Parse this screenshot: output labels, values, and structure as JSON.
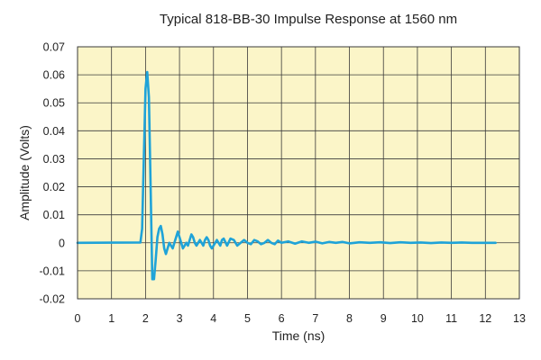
{
  "chart_data": {
    "type": "line",
    "title": "Typical 818-BB-30 Impulse Response at 1560 nm",
    "xlabel": "Time (ns)",
    "ylabel": "Amplitude (Volts)",
    "xlim": [
      0,
      13
    ],
    "ylim": [
      -0.02,
      0.07
    ],
    "x_ticks": [
      "0",
      "1",
      "2",
      "3",
      "4",
      "5",
      "6",
      "7",
      "8",
      "9",
      "10",
      "11",
      "12",
      "13"
    ],
    "y_ticks": [
      "-0.02",
      "-0.01",
      "0",
      "0.01",
      "0.02",
      "0.03",
      "0.04",
      "0.05",
      "0.06",
      "0.07"
    ],
    "grid": true,
    "colors": {
      "plot_background": "#fbf5c8",
      "grid": "#3a3a3a",
      "line": "#1fa3d8"
    },
    "series": [
      {
        "x": [
          0,
          1.85,
          1.9,
          1.95,
          2.0,
          2.05,
          2.1,
          2.15,
          2.2,
          2.25,
          2.3,
          2.35,
          2.4,
          2.45,
          2.5,
          2.55,
          2.6,
          2.65,
          2.7,
          2.75,
          2.8,
          2.85,
          2.9,
          2.95,
          3.0,
          3.05,
          3.1,
          3.15,
          3.2,
          3.25,
          3.3,
          3.35,
          3.4,
          3.45,
          3.5,
          3.55,
          3.6,
          3.65,
          3.7,
          3.75,
          3.8,
          3.85,
          3.9,
          3.95,
          4.0,
          4.05,
          4.1,
          4.15,
          4.2,
          4.25,
          4.3,
          4.4,
          4.5,
          4.6,
          4.7,
          4.8,
          4.9,
          5.0,
          5.1,
          5.2,
          5.3,
          5.4,
          5.5,
          5.6,
          5.7,
          5.8,
          5.9,
          6.0,
          6.2,
          6.4,
          6.6,
          6.8,
          7.0,
          7.2,
          7.4,
          7.6,
          7.8,
          8.0,
          8.3,
          8.6,
          8.9,
          9.2,
          9.5,
          9.8,
          10.1,
          10.4,
          10.7,
          11.0,
          11.3,
          11.6,
          11.9,
          12.3
        ],
        "y": [
          0,
          0.0001,
          0.005,
          0.03,
          0.055,
          0.061,
          0.052,
          0.02,
          -0.013,
          -0.013,
          -0.006,
          0.002,
          0.005,
          0.006,
          0.003,
          -0.002,
          -0.004,
          -0.002,
          0.0,
          -0.001,
          -0.002,
          0.0,
          0.002,
          0.004,
          0.002,
          0.0,
          -0.002,
          -0.001,
          0.0,
          -0.001,
          0.001,
          0.003,
          0.002,
          0.0,
          -0.001,
          0.0,
          0.001,
          0.0,
          -0.001,
          0.001,
          0.002,
          0.001,
          -0.001,
          -0.002,
          -0.001,
          0.0,
          0.001,
          0.0,
          -0.001,
          0.001,
          0.0015,
          -0.001,
          0.0015,
          0.001,
          -0.001,
          0.0,
          0.001,
          0.0,
          -0.0005,
          0.001,
          0.0005,
          -0.0005,
          0.0,
          0.001,
          0.0,
          -0.0005,
          0.0008,
          0.0,
          0.0005,
          -0.0003,
          0.0005,
          0.0,
          0.0004,
          -0.0002,
          0.0003,
          0.0,
          0.0003,
          -0.0002,
          0.0002,
          0.0,
          0.0002,
          -0.0001,
          0.0002,
          0.0,
          0.0001,
          -0.0001,
          0.0001,
          0.0,
          0.0001,
          0.0,
          0.0,
          0.0
        ]
      }
    ]
  }
}
